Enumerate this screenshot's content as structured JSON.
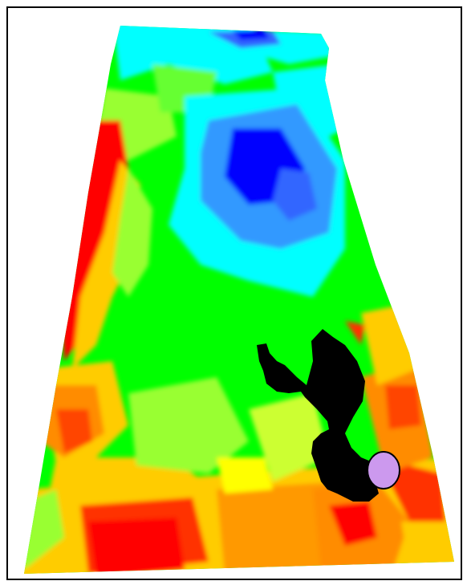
{
  "image": {
    "kind": "perspective-terrain-heatmap",
    "palette": {
      "red": "#ff0000",
      "orange": "#ff8c00",
      "yellow": "#ffff00",
      "yellow_green": "#99ff33",
      "green": "#00ff00",
      "cyan": "#00ffff",
      "light_blue": "#3399ff",
      "blue": "#0000ff",
      "black_region": "#000000",
      "marker_fill": "#cc99ee",
      "frame_border": "#000000"
    }
  }
}
